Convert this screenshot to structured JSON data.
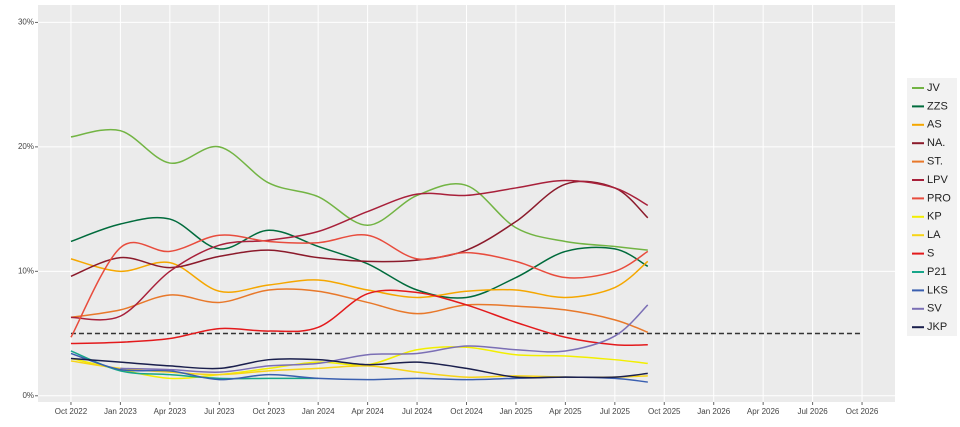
{
  "chart_data": {
    "type": "line",
    "x": [
      "2022-10",
      "2023-01",
      "2023-04",
      "2023-07",
      "2023-10",
      "2024-01",
      "2024-04",
      "2024-07",
      "2024-10",
      "2025-01",
      "2025-04",
      "2025-07",
      "2025-09"
    ],
    "xlim": [
      "2022-08",
      "2026-12"
    ],
    "xticks": [
      {
        "value": "2022-10",
        "label": "Oct 2022"
      },
      {
        "value": "2023-01",
        "label": "Jan 2023"
      },
      {
        "value": "2023-04",
        "label": "Apr 2023"
      },
      {
        "value": "2023-07",
        "label": "Jul 2023"
      },
      {
        "value": "2023-10",
        "label": "Oct 2023"
      },
      {
        "value": "2024-01",
        "label": "Jan 2024"
      },
      {
        "value": "2024-04",
        "label": "Apr 2024"
      },
      {
        "value": "2024-07",
        "label": "Jul 2024"
      },
      {
        "value": "2024-10",
        "label": "Oct 2024"
      },
      {
        "value": "2025-01",
        "label": "Jan 2025"
      },
      {
        "value": "2025-04",
        "label": "Apr 2025"
      },
      {
        "value": "2025-07",
        "label": "Jul 2025"
      },
      {
        "value": "2025-10",
        "label": "Oct 2025"
      },
      {
        "value": "2026-01",
        "label": "Jan 2026"
      },
      {
        "value": "2026-04",
        "label": "Apr 2026"
      },
      {
        "value": "2026-07",
        "label": "Jul 2026"
      },
      {
        "value": "2026-10",
        "label": "Oct 2026"
      }
    ],
    "ylim": [
      -0.5,
      31.4
    ],
    "yticks": [
      {
        "value": 0,
        "label": "0%"
      },
      {
        "value": 10,
        "label": "10%"
      },
      {
        "value": 20,
        "label": "20%"
      },
      {
        "value": 30,
        "label": "30%"
      }
    ],
    "grid": true,
    "threshold": 5,
    "legend": "right",
    "series": [
      {
        "name": "JV",
        "color": "#72b443",
        "values": [
          20.8,
          21.3,
          18.7,
          20.0,
          17.1,
          16.0,
          13.7,
          16.1,
          16.9,
          13.5,
          12.4,
          12.0,
          11.7
        ]
      },
      {
        "name": "ZZS",
        "color": "#006b3c",
        "values": [
          12.4,
          13.8,
          14.2,
          11.8,
          13.3,
          12.0,
          10.6,
          8.5,
          7.9,
          9.5,
          11.6,
          11.8,
          10.4
        ]
      },
      {
        "name": "AS",
        "color": "#f5a700",
        "values": [
          11.0,
          10.0,
          10.7,
          8.4,
          8.9,
          9.3,
          8.5,
          7.9,
          8.4,
          8.5,
          7.9,
          8.7,
          10.8
        ]
      },
      {
        "name": "NA.",
        "color": "#8b1a2b",
        "values": [
          9.6,
          11.1,
          10.3,
          11.2,
          11.7,
          11.1,
          10.8,
          10.9,
          11.7,
          14.0,
          17.0,
          16.7,
          14.3
        ]
      },
      {
        "name": "ST.",
        "color": "#e8782a",
        "values": [
          6.3,
          6.9,
          8.1,
          7.5,
          8.5,
          8.4,
          7.5,
          6.6,
          7.3,
          7.2,
          6.9,
          6.1,
          5.1
        ]
      },
      {
        "name": "LPV",
        "color": "#a8203a",
        "values": [
          6.3,
          6.4,
          10.0,
          12.1,
          12.5,
          13.2,
          14.8,
          16.2,
          16.1,
          16.7,
          17.3,
          16.7,
          15.3
        ]
      },
      {
        "name": "PRO",
        "color": "#e84c3d",
        "values": [
          4.7,
          11.9,
          11.6,
          12.9,
          12.4,
          12.3,
          12.9,
          11.0,
          11.5,
          10.8,
          9.5,
          10.0,
          11.6
        ]
      },
      {
        "name": "KP",
        "color": "#f2ee00",
        "values": [
          3.0,
          2.1,
          1.4,
          1.7,
          2.2,
          2.7,
          2.5,
          3.7,
          3.9,
          3.3,
          3.2,
          2.9,
          2.6
        ]
      },
      {
        "name": "LA",
        "color": "#f7d417",
        "values": [
          2.8,
          2.2,
          1.9,
          1.7,
          2.0,
          2.2,
          2.4,
          1.9,
          1.5,
          1.6,
          1.5,
          1.5,
          1.6
        ]
      },
      {
        "name": "S",
        "color": "#e31a1c",
        "values": [
          4.2,
          4.3,
          4.6,
          5.4,
          5.2,
          5.5,
          8.2,
          8.3,
          7.3,
          5.9,
          4.7,
          4.1,
          4.1
        ]
      },
      {
        "name": "P21",
        "color": "#17a589",
        "values": [
          3.6,
          2.0,
          1.7,
          1.4,
          1.4,
          1.4,
          null,
          null,
          null,
          null,
          null,
          null,
          null
        ]
      },
      {
        "name": "LKS",
        "color": "#3a5fb0",
        "values": [
          3.4,
          2.1,
          2.0,
          1.3,
          1.7,
          1.4,
          1.3,
          1.4,
          1.3,
          1.4,
          1.5,
          1.4,
          1.1
        ]
      },
      {
        "name": "SV",
        "color": "#7b6fb5",
        "values": [
          null,
          2.2,
          2.1,
          1.9,
          2.4,
          2.6,
          3.3,
          3.4,
          4.0,
          3.7,
          3.6,
          4.8,
          7.3
        ]
      },
      {
        "name": "JKP",
        "color": "#1a1f4d",
        "values": [
          3.0,
          2.7,
          2.4,
          2.2,
          2.9,
          2.9,
          2.5,
          2.7,
          2.2,
          1.5,
          1.5,
          1.5,
          1.8
        ]
      }
    ]
  }
}
